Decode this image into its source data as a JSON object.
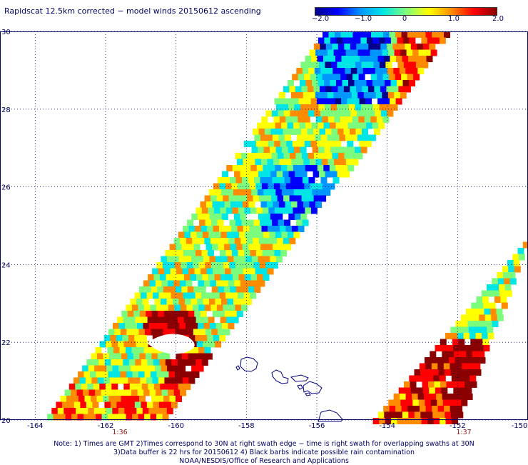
{
  "title": "Rapidscat 12.5km corrected − model winds 20150612 ascending",
  "colorbar": {
    "tick_labels": [
      "−2.0",
      "−1.0",
      "0",
      "1.0",
      "2.0"
    ],
    "range": [
      -2.0,
      2.0
    ],
    "colors": [
      "#00008b",
      "#0000ff",
      "#0096ff",
      "#00e6e6",
      "#7cfc7c",
      "#ffff00",
      "#ff8c00",
      "#ff0000",
      "#8b0000"
    ]
  },
  "axes": {
    "x_ticks": [
      "-164",
      "-162",
      "-160",
      "-158",
      "-156",
      "-154",
      "-152",
      "-150"
    ],
    "y_ticks": [
      "30",
      "28",
      "26",
      "24",
      "22",
      "20"
    ],
    "lon_range": [
      -165,
      -150
    ],
    "lat_range": [
      20,
      30
    ]
  },
  "time_labels": [
    "1:36",
    "1:37"
  ],
  "footer": {
    "line1": "Note: 1) Times are GMT 2)Times correspond to 30N at right swath edge − time is right swath for overlapping swaths at 30N",
    "line2": "3)Data buffer is 22 hrs for 20150612 4) Black barbs indicate possible rain contamination",
    "line3": "NOAA/NESDIS/Office of Research and Applications"
  },
  "map": {
    "grid": "dotted",
    "islands": [
      "Kauai",
      "Oahu",
      "Molokai",
      "Maui",
      "Hawaii"
    ]
  }
}
